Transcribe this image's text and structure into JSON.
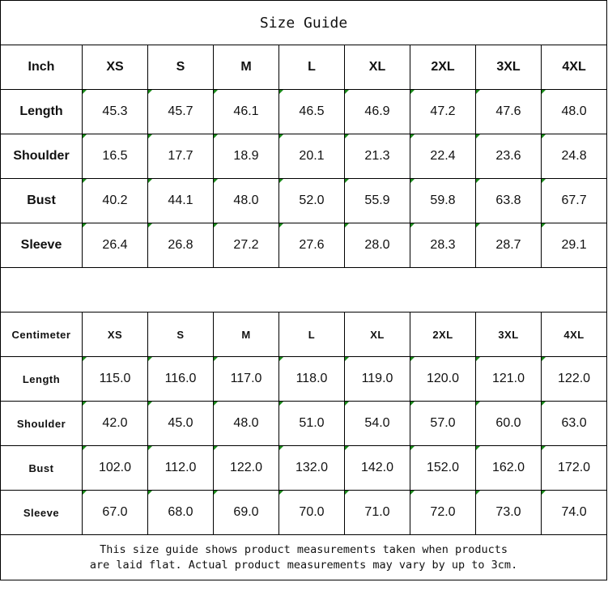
{
  "title": "Size Guide",
  "inch_table": {
    "unit_label": "Inch",
    "sizes": [
      "XS",
      "S",
      "M",
      "L",
      "XL",
      "2XL",
      "3XL",
      "4XL"
    ],
    "rows": [
      {
        "label": "Length",
        "values": [
          "45.3",
          "45.7",
          "46.1",
          "46.5",
          "46.9",
          "47.2",
          "47.6",
          "48.0"
        ]
      },
      {
        "label": "Shoulder",
        "values": [
          "16.5",
          "17.7",
          "18.9",
          "20.1",
          "21.3",
          "22.4",
          "23.6",
          "24.8"
        ]
      },
      {
        "label": "Bust",
        "values": [
          "40.2",
          "44.1",
          "48.0",
          "52.0",
          "55.9",
          "59.8",
          "63.8",
          "67.7"
        ]
      },
      {
        "label": "Sleeve",
        "values": [
          "26.4",
          "26.8",
          "27.2",
          "27.6",
          "28.0",
          "28.3",
          "28.7",
          "29.1"
        ]
      }
    ]
  },
  "cm_table": {
    "unit_label": "Centimeter",
    "sizes": [
      "XS",
      "S",
      "M",
      "L",
      "XL",
      "2XL",
      "3XL",
      "4XL"
    ],
    "rows": [
      {
        "label": "Length",
        "values": [
          "115.0",
          "116.0",
          "117.0",
          "118.0",
          "119.0",
          "120.0",
          "121.0",
          "122.0"
        ]
      },
      {
        "label": "Shoulder",
        "values": [
          "42.0",
          "45.0",
          "48.0",
          "51.0",
          "54.0",
          "57.0",
          "60.0",
          "63.0"
        ]
      },
      {
        "label": "Bust",
        "values": [
          "102.0",
          "112.0",
          "122.0",
          "132.0",
          "142.0",
          "152.0",
          "162.0",
          "172.0"
        ]
      },
      {
        "label": "Sleeve",
        "values": [
          "67.0",
          "68.0",
          "69.0",
          "70.0",
          "71.0",
          "72.0",
          "73.0",
          "74.0"
        ]
      }
    ]
  },
  "note_line1": "This size guide shows product measurements taken when products",
  "note_line2": "are laid flat. Actual product measurements may vary by up to 3cm.",
  "colors": {
    "error_indicator": "#1a8a1a",
    "border": "#000000"
  }
}
